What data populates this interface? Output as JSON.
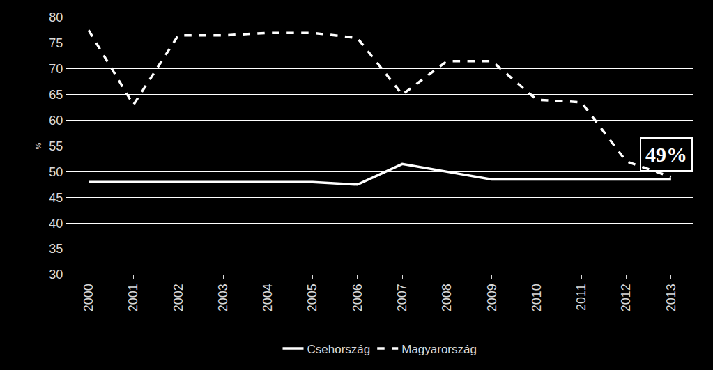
{
  "chart_data": {
    "type": "line",
    "categories": [
      "2000",
      "2001",
      "2002",
      "2003",
      "2004",
      "2005",
      "2006",
      "2007",
      "2008",
      "2009",
      "2010",
      "2011",
      "2012",
      "2013"
    ],
    "series": [
      {
        "name": "Csehország",
        "color": "#ffffff",
        "line_style": "solid",
        "values": [
          48,
          48,
          48,
          48,
          48,
          48,
          47.5,
          51.5,
          50,
          48.5,
          48.5,
          48.5,
          48.5,
          48.5
        ]
      },
      {
        "name": "Magyarország",
        "color": "#ffffff",
        "line_style": "dashed",
        "values": [
          77.5,
          63,
          76.5,
          76.5,
          77,
          77,
          76,
          65,
          71.5,
          71.5,
          64,
          63.5,
          52,
          49
        ]
      }
    ],
    "ylabel": "%",
    "ylim": [
      30,
      80
    ],
    "yticks": [
      30,
      35,
      40,
      45,
      50,
      55,
      60,
      65,
      70,
      75,
      80
    ],
    "grid": true,
    "legend": "bottom",
    "annotations": [
      {
        "text": "49%",
        "category": "2013",
        "series": "Magyarország"
      }
    ]
  }
}
